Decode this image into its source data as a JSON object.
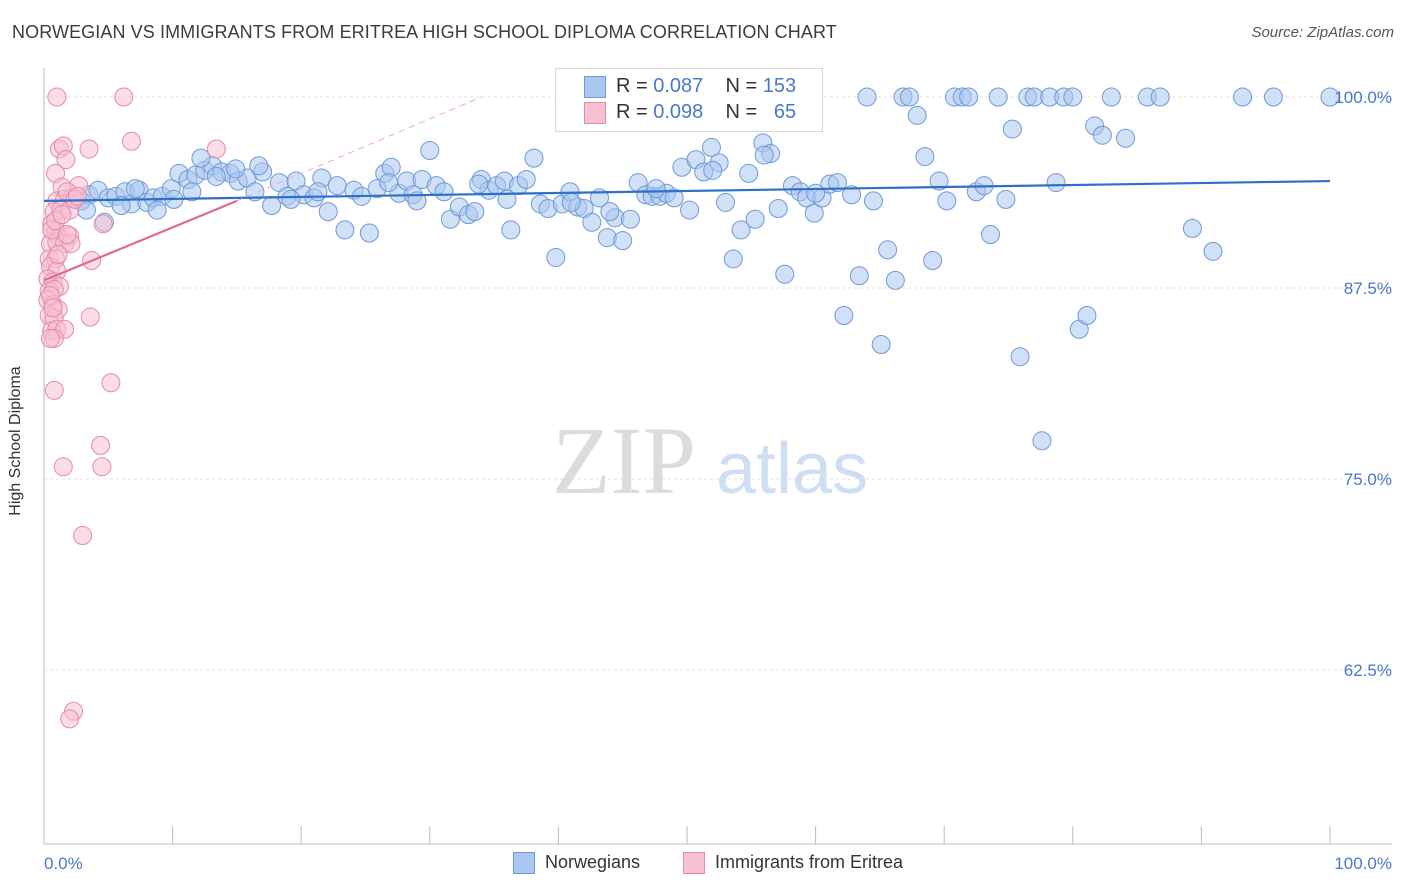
{
  "title": "NORWEGIAN VS IMMIGRANTS FROM ERITREA HIGH SCHOOL DIPLOMA CORRELATION CHART",
  "source": "Source: ZipAtlas.com",
  "watermark": {
    "zip": "ZIP",
    "atlas": "atlas"
  },
  "legend": {
    "rows": [
      {
        "r_label": "R =",
        "r_value": "0.087",
        "n_label": "N =",
        "n_value": "153",
        "color": "#a9c7f0",
        "border": "#6f9ad6"
      },
      {
        "r_label": "R =",
        "r_value": "0.098",
        "n_label": "N =",
        "n_value": "65",
        "color": "#f8c0d3",
        "border": "#e58aab"
      }
    ]
  },
  "bottom_legend": [
    {
      "label": "Norwegians",
      "color": "#a9c7f0",
      "border": "#6f9ad6"
    },
    {
      "label": "Immigrants from Eritrea",
      "color": "#f8c0d3",
      "border": "#e58aab"
    }
  ],
  "chart_data": {
    "type": "scatter",
    "title": "NORWEGIAN VS IMMIGRANTS FROM ERITREA HIGH SCHOOL DIPLOMA CORRELATION CHART",
    "xlabel": "",
    "ylabel": "High School Diploma",
    "xlim": [
      0,
      100
    ],
    "ylim": [
      50,
      101.5
    ],
    "x_tick_labels": [
      "0.0%",
      "100.0%"
    ],
    "y_ticks": [
      62.5,
      75.0,
      87.5,
      100.0
    ],
    "y_tick_labels": [
      "62.5%",
      "75.0%",
      "87.5%",
      "100.0%"
    ],
    "grid": true,
    "series": [
      {
        "name": "Norwegians",
        "color": "#a9c7f0",
        "stroke": "#6f9ad6",
        "trend": {
          "x": [
            0,
            100
          ],
          "y": [
            93.2,
            94.5
          ],
          "color": "#2f6fcc"
        },
        "points": [
          [
            2.9,
            93.2
          ],
          [
            3.5,
            93.6
          ],
          [
            4.2,
            93.9
          ],
          [
            5.0,
            93.4
          ],
          [
            5.6,
            93.5
          ],
          [
            6.3,
            93.8
          ],
          [
            6.8,
            93.0
          ],
          [
            7.4,
            93.9
          ],
          [
            8.0,
            93.1
          ],
          [
            8.5,
            93.4
          ],
          [
            9.2,
            93.5
          ],
          [
            9.9,
            94.0
          ],
          [
            10.5,
            95.0
          ],
          [
            11.2,
            94.6
          ],
          [
            11.8,
            94.9
          ],
          [
            12.5,
            95.2
          ],
          [
            13.1,
            95.5
          ],
          [
            13.8,
            95.1
          ],
          [
            14.5,
            95.0
          ],
          [
            15.1,
            94.5
          ],
          [
            15.8,
            94.7
          ],
          [
            16.4,
            93.8
          ],
          [
            17.0,
            95.1
          ],
          [
            17.7,
            92.9
          ],
          [
            18.3,
            94.4
          ],
          [
            18.9,
            93.5
          ],
          [
            19.6,
            94.5
          ],
          [
            20.2,
            93.6
          ],
          [
            21.0,
            93.4
          ],
          [
            21.6,
            94.7
          ],
          [
            22.1,
            92.5
          ],
          [
            22.8,
            94.2
          ],
          [
            23.4,
            91.3
          ],
          [
            24.1,
            93.9
          ],
          [
            24.7,
            93.5
          ],
          [
            25.3,
            91.1
          ],
          [
            25.9,
            94.0
          ],
          [
            26.5,
            95.0
          ],
          [
            27.0,
            95.4
          ],
          [
            27.6,
            93.7
          ],
          [
            28.2,
            94.5
          ],
          [
            28.7,
            93.6
          ],
          [
            29.4,
            94.6
          ],
          [
            30.0,
            96.5
          ],
          [
            30.5,
            94.2
          ],
          [
            31.1,
            93.8
          ],
          [
            31.6,
            92.0
          ],
          [
            32.3,
            92.8
          ],
          [
            33.0,
            92.3
          ],
          [
            33.5,
            92.5
          ],
          [
            34.0,
            94.6
          ],
          [
            34.6,
            93.9
          ],
          [
            35.2,
            94.2
          ],
          [
            35.8,
            94.5
          ],
          [
            36.3,
            91.3
          ],
          [
            36.9,
            94.2
          ],
          [
            37.5,
            94.6
          ],
          [
            38.1,
            96.0
          ],
          [
            38.6,
            93.0
          ],
          [
            39.2,
            92.7
          ],
          [
            39.8,
            89.5
          ],
          [
            40.3,
            93.0
          ],
          [
            40.9,
            93.8
          ],
          [
            41.5,
            92.8
          ],
          [
            42.0,
            92.7
          ],
          [
            42.6,
            91.8
          ],
          [
            43.2,
            93.4
          ],
          [
            43.8,
            90.8
          ],
          [
            44.4,
            92.1
          ],
          [
            45.0,
            90.6
          ],
          [
            45.6,
            92.0
          ],
          [
            46.2,
            94.4
          ],
          [
            46.8,
            93.6
          ],
          [
            47.3,
            93.5
          ],
          [
            47.9,
            93.5
          ],
          [
            48.4,
            93.7
          ],
          [
            49.0,
            93.4
          ],
          [
            49.6,
            95.4
          ],
          [
            50.2,
            92.6
          ],
          [
            50.7,
            95.9
          ],
          [
            51.3,
            95.1
          ],
          [
            51.9,
            96.7
          ],
          [
            52.5,
            95.7
          ],
          [
            53.0,
            93.1
          ],
          [
            53.6,
            89.4
          ],
          [
            54.2,
            91.3
          ],
          [
            54.8,
            95.0
          ],
          [
            55.3,
            92.0
          ],
          [
            55.9,
            97.0
          ],
          [
            56.5,
            96.3
          ],
          [
            57.1,
            92.7
          ],
          [
            57.6,
            88.4
          ],
          [
            58.2,
            94.2
          ],
          [
            58.8,
            93.8
          ],
          [
            59.3,
            93.4
          ],
          [
            59.9,
            92.4
          ],
          [
            60.5,
            93.4
          ],
          [
            61.1,
            94.3
          ],
          [
            61.7,
            94.4
          ],
          [
            62.2,
            85.7
          ],
          [
            62.8,
            93.6
          ],
          [
            63.4,
            88.3
          ],
          [
            64.0,
            100.0
          ],
          [
            64.5,
            93.2
          ],
          [
            65.1,
            83.8
          ],
          [
            65.6,
            90.0
          ],
          [
            66.2,
            88.0
          ],
          [
            66.8,
            100.0
          ],
          [
            67.3,
            100.0
          ],
          [
            67.9,
            98.8
          ],
          [
            68.5,
            96.1
          ],
          [
            69.1,
            89.3
          ],
          [
            69.6,
            94.5
          ],
          [
            70.2,
            93.2
          ],
          [
            70.8,
            100.0
          ],
          [
            71.4,
            100.0
          ],
          [
            71.9,
            100.0
          ],
          [
            72.5,
            93.8
          ],
          [
            73.1,
            94.2
          ],
          [
            73.6,
            91.0
          ],
          [
            74.2,
            100.0
          ],
          [
            74.8,
            93.3
          ],
          [
            75.3,
            97.9
          ],
          [
            75.9,
            83.0
          ],
          [
            76.5,
            100.0
          ],
          [
            77.0,
            100.0
          ],
          [
            77.6,
            77.5
          ],
          [
            78.2,
            100.0
          ],
          [
            78.7,
            94.4
          ],
          [
            79.3,
            100.0
          ],
          [
            80.0,
            100.0
          ],
          [
            80.5,
            84.8
          ],
          [
            81.1,
            85.7
          ],
          [
            81.7,
            98.1
          ],
          [
            82.3,
            97.5
          ],
          [
            83.0,
            100.0
          ],
          [
            84.1,
            97.3
          ],
          [
            85.8,
            100.0
          ],
          [
            86.8,
            100.0
          ],
          [
            89.3,
            91.4
          ],
          [
            90.9,
            89.9
          ],
          [
            93.2,
            100.0
          ],
          [
            95.6,
            100.0
          ],
          [
            100.0,
            100.0
          ],
          [
            3.3,
            92.6
          ],
          [
            4.7,
            91.8
          ],
          [
            6.0,
            92.9
          ],
          [
            7.1,
            94.0
          ],
          [
            8.8,
            92.6
          ],
          [
            10.1,
            93.3
          ],
          [
            11.5,
            93.8
          ],
          [
            12.2,
            96.0
          ],
          [
            13.4,
            94.8
          ],
          [
            14.9,
            95.3
          ],
          [
            16.7,
            95.5
          ],
          [
            19.2,
            93.3
          ],
          [
            21.3,
            93.8
          ],
          [
            26.8,
            94.4
          ],
          [
            29.0,
            93.2
          ],
          [
            33.8,
            94.3
          ],
          [
            36.0,
            93.3
          ],
          [
            41.0,
            93.1
          ],
          [
            44.0,
            92.5
          ],
          [
            47.6,
            94.0
          ],
          [
            52.0,
            95.2
          ],
          [
            56.0,
            96.2
          ],
          [
            60.0,
            93.7
          ]
        ]
      },
      {
        "name": "Immigrants from Eritrea",
        "color": "#f8c0d3",
        "stroke": "#e58aab",
        "trend": {
          "x": [
            0,
            15.0
          ],
          "y": [
            88.0,
            93.2
          ],
          "color": "#e06893"
        },
        "trend_ext": {
          "x": [
            15.0,
            34.0
          ],
          "y": [
            93.2,
            100.0
          ]
        },
        "points": [
          [
            1.0,
            100.0
          ],
          [
            6.2,
            100.0
          ],
          [
            1.2,
            96.6
          ],
          [
            1.5,
            96.8
          ],
          [
            3.5,
            96.6
          ],
          [
            6.8,
            97.1
          ],
          [
            13.4,
            96.6
          ],
          [
            1.7,
            95.9
          ],
          [
            0.9,
            95.0
          ],
          [
            1.4,
            94.1
          ],
          [
            2.7,
            94.2
          ],
          [
            1.0,
            93.2
          ],
          [
            1.6,
            93.3
          ],
          [
            2.2,
            93.4
          ],
          [
            0.8,
            92.5
          ],
          [
            1.3,
            92.6
          ],
          [
            2.0,
            92.6
          ],
          [
            4.6,
            91.7
          ],
          [
            0.6,
            91.7
          ],
          [
            0.9,
            91.2
          ],
          [
            1.2,
            90.8
          ],
          [
            2.0,
            90.9
          ],
          [
            0.5,
            90.4
          ],
          [
            1.0,
            90.5
          ],
          [
            1.6,
            90.4
          ],
          [
            2.1,
            90.4
          ],
          [
            0.4,
            89.4
          ],
          [
            0.9,
            89.4
          ],
          [
            3.7,
            89.3
          ],
          [
            0.5,
            88.9
          ],
          [
            1.0,
            88.6
          ],
          [
            0.3,
            88.1
          ],
          [
            0.7,
            87.9
          ],
          [
            1.2,
            87.6
          ],
          [
            0.4,
            87.3
          ],
          [
            0.8,
            87.4
          ],
          [
            0.3,
            86.7
          ],
          [
            0.7,
            86.4
          ],
          [
            1.1,
            86.1
          ],
          [
            0.4,
            85.7
          ],
          [
            0.8,
            85.5
          ],
          [
            3.6,
            85.6
          ],
          [
            0.6,
            84.7
          ],
          [
            1.0,
            84.8
          ],
          [
            1.6,
            84.8
          ],
          [
            0.8,
            84.2
          ],
          [
            0.8,
            80.8
          ],
          [
            5.2,
            81.3
          ],
          [
            4.4,
            77.2
          ],
          [
            1.5,
            75.8
          ],
          [
            4.5,
            75.8
          ],
          [
            3.0,
            71.3
          ],
          [
            2.3,
            59.8
          ],
          [
            2.0,
            59.3
          ],
          [
            0.6,
            91.3
          ],
          [
            1.8,
            93.8
          ],
          [
            2.4,
            93.3
          ],
          [
            0.5,
            87.0
          ],
          [
            1.1,
            89.7
          ],
          [
            0.9,
            91.9
          ],
          [
            1.4,
            92.3
          ],
          [
            0.7,
            86.2
          ],
          [
            1.8,
            91.0
          ],
          [
            0.5,
            84.2
          ],
          [
            2.6,
            93.5
          ]
        ]
      }
    ]
  }
}
